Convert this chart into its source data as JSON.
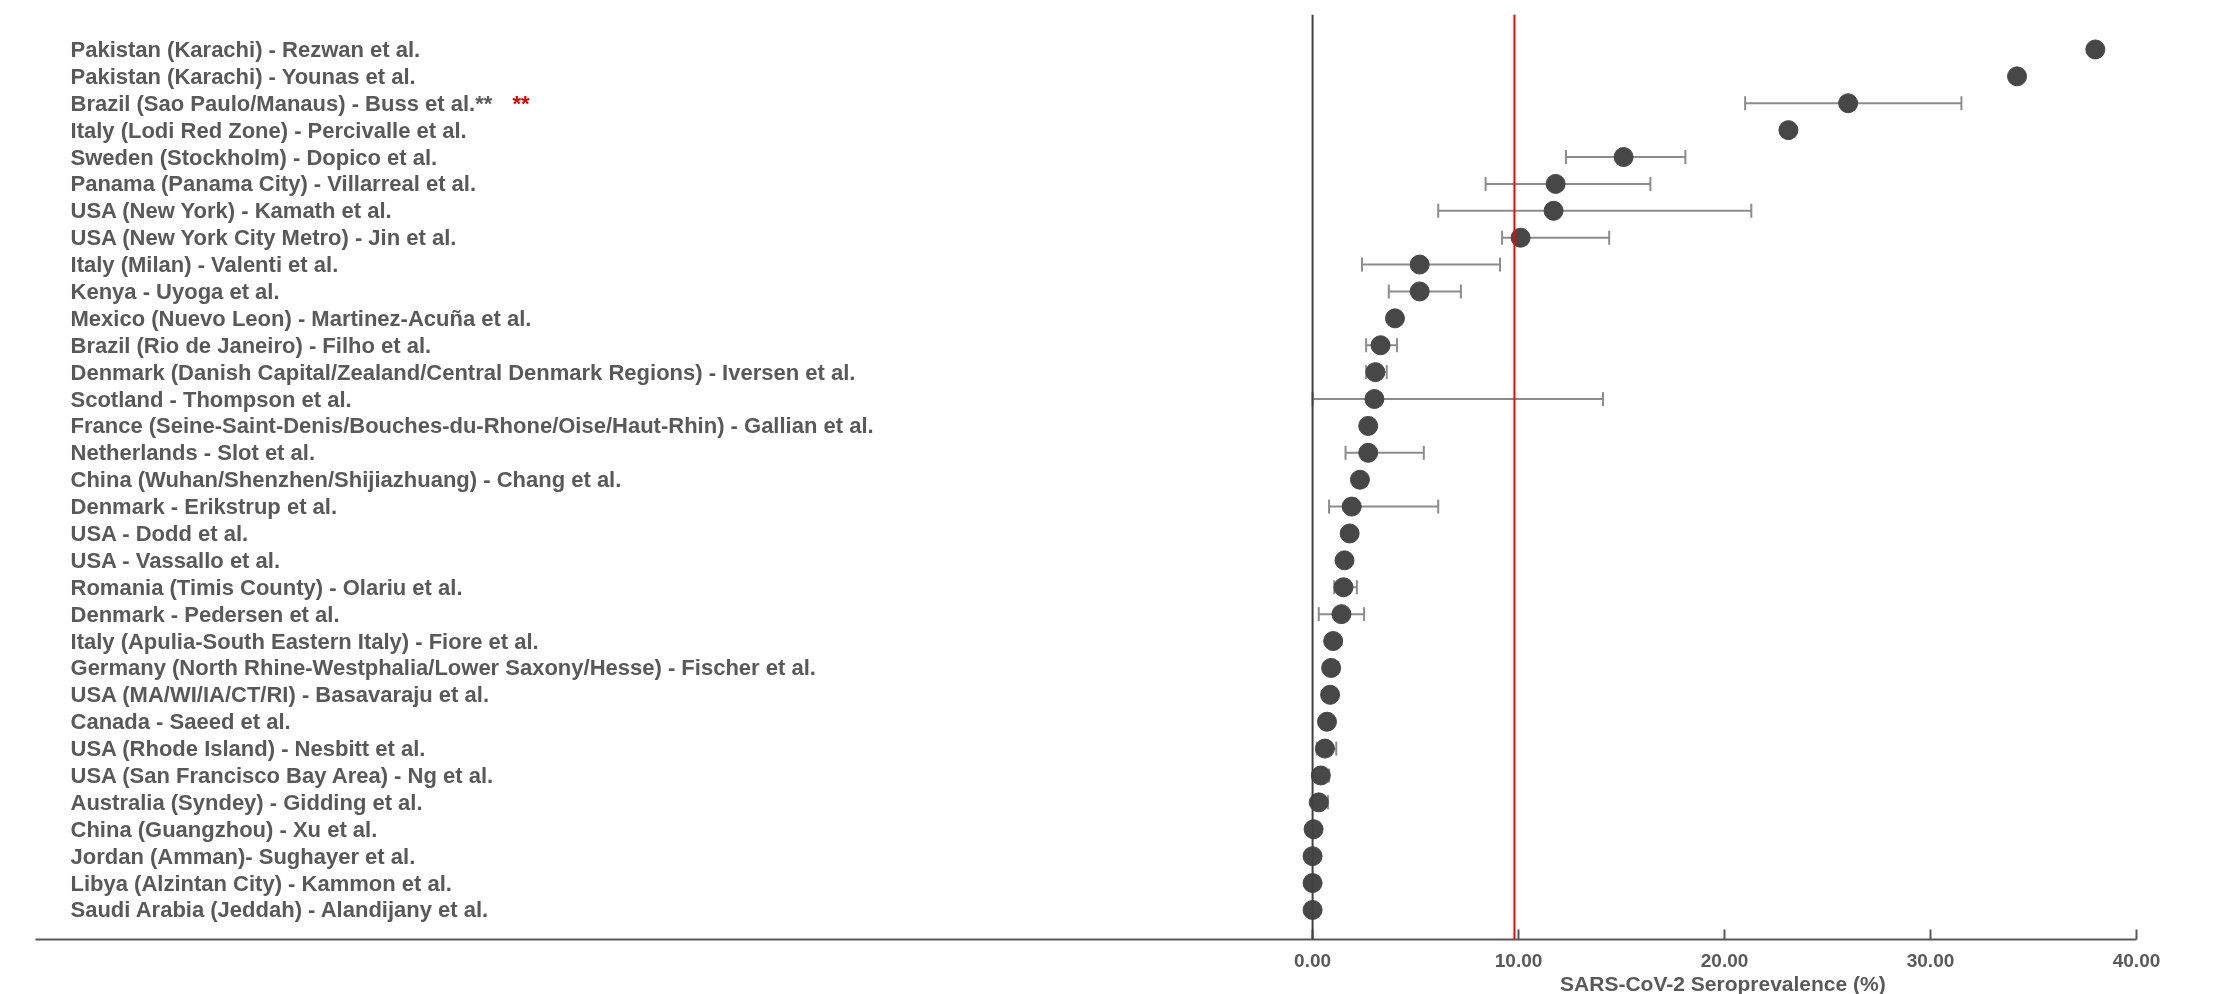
{
  "chart_data": {
    "type": "scatter",
    "orientation": "horizontal",
    "xlabel": "SARS-CoV-2 Seroprevalence (%)",
    "categories": [
      "Pakistan (Karachi)  - Rezwan et al.",
      "Pakistan (Karachi) - Younas et al.",
      "Brazil (Sao Paulo/Manaus) - Buss et al.**",
      "Italy (Lodi Red Zone) - Percivalle et al.",
      "Sweden (Stockholm) - Dopico et al.",
      "Panama (Panama City) - Villarreal et al.",
      "USA (New York) - Kamath et al.",
      "USA (New York City Metro) - Jin et al.",
      "Italy (Milan) - Valenti et al.",
      "Kenya - Uyoga et al.",
      "Mexico (Nuevo Leon) - Martinez-Acuña et al.",
      "Brazil (Rio de Janeiro) - Filho et al.",
      "Denmark (Danish Capital/Zealand/Central Denmark Regions) - Iversen et al.",
      "Scotland - Thompson et al.",
      "France (Seine-Saint-Denis/Bouches-du-Rhone/Oise/Haut-Rhin) - Gallian et al.",
      "Netherlands - Slot et al.",
      "China (Wuhan/Shenzhen/Shijiazhuang) - Chang et al.",
      "Denmark - Erikstrup et al.",
      "USA - Dodd et al.",
      "USA - Vassallo et al.",
      "Romania (Timis County) - Olariu et al.",
      "Denmark - Pedersen et al.",
      "Italy (Apulia-South Eastern Italy) - Fiore et al.",
      "Germany (North Rhine-Westphalia/Lower Saxony/Hesse) - Fischer et al.",
      "USA (MA/WI/IA/CT/RI) - Basavaraju et al.",
      "Canada - Saeed et al.",
      "USA (Rhode Island) - Nesbitt et al.",
      "USA (San Francisco Bay Area) - Ng et al.",
      "Australia (Syndey) - Gidding et al.",
      "China (Guangzhou) - Xu et al.",
      "Jordan (Amman)- Sughayer et al.",
      "Libya (Alzintan City) - Kammon et al.",
      "Saudi Arabia (Jeddah) - Alandijany et al."
    ],
    "series": [
      {
        "color": "#474747",
        "values": [
          38.0,
          34.2,
          26.0,
          23.1,
          15.1,
          11.8,
          11.7,
          10.1,
          5.2,
          5.2,
          4.0,
          3.3,
          3.05,
          3.0,
          2.7,
          2.7,
          2.3,
          1.9,
          1.8,
          1.55,
          1.5,
          1.4,
          1.0,
          0.9,
          0.85,
          0.7,
          0.6,
          0.4,
          0.3,
          0.05,
          0.0,
          0.0,
          0.0
        ],
        "errors": [
          null,
          null,
          [
            21.0,
            31.5
          ],
          null,
          [
            12.3,
            18.1
          ],
          [
            8.4,
            16.4
          ],
          [
            6.1,
            21.3
          ],
          [
            9.2,
            14.4
          ],
          [
            2.4,
            9.1
          ],
          [
            3.7,
            7.2
          ],
          null,
          [
            2.6,
            4.1
          ],
          [
            2.6,
            3.6
          ],
          [
            0.0,
            14.1
          ],
          null,
          [
            1.6,
            5.4
          ],
          null,
          [
            0.8,
            6.1
          ],
          null,
          null,
          [
            1.05,
            2.15
          ],
          [
            0.3,
            2.5
          ],
          null,
          [
            0.6,
            1.25
          ],
          null,
          null,
          [
            0.2,
            1.15
          ],
          [
            0.3,
            0.8
          ],
          [
            0.1,
            0.75
          ],
          null,
          null,
          null,
          null
        ]
      }
    ],
    "marker": "circle",
    "xlim": [
      -62,
      40
    ],
    "xticks": [
      {
        "value": 0,
        "label": "0.00"
      },
      {
        "value": 10,
        "label": "10.00"
      },
      {
        "value": 20,
        "label": "20.00"
      },
      {
        "value": 30,
        "label": "30.00"
      },
      {
        "value": 40,
        "label": "40.00"
      }
    ],
    "ref_lines": [
      {
        "axis": "x",
        "value": 0,
        "color": "#404040"
      },
      {
        "axis": "x",
        "value": 9.8,
        "color": "#ff0000"
      }
    ],
    "annotations": [
      "**"
    ]
  }
}
